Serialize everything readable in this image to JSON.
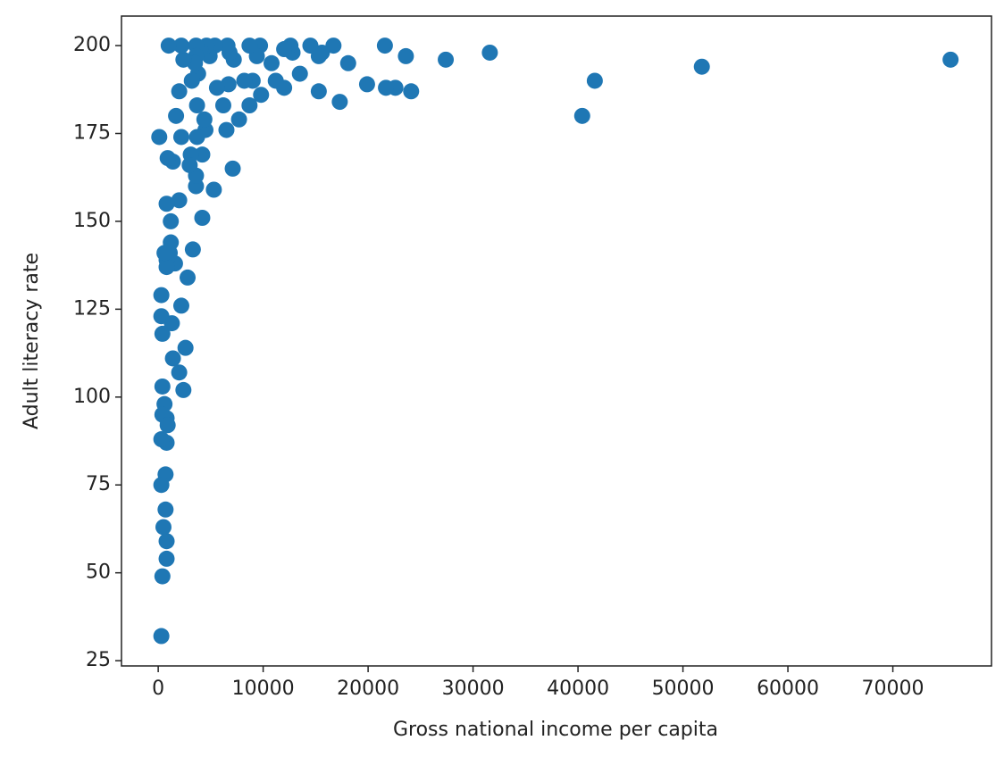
{
  "chart_data": {
    "type": "scatter",
    "x_label": "Gross national income per capita",
    "y_label": "Adult literacy rate",
    "color": "#1f77b4",
    "xlim": [
      -3500,
      79400
    ],
    "ylim": [
      23.5,
      208.4
    ],
    "xticks": [
      0,
      10000,
      20000,
      30000,
      40000,
      50000,
      60000,
      70000
    ],
    "yticks": [
      25,
      50,
      75,
      100,
      125,
      150,
      175,
      200
    ],
    "x": [
      75500,
      51800,
      41600,
      40400,
      31600,
      27400,
      24100,
      22600,
      21700,
      21600,
      23600,
      19900,
      18100,
      17300,
      16700,
      15600,
      15300,
      15300,
      14500,
      13500,
      12800,
      12600,
      12000,
      12000,
      11200,
      10800,
      9700,
      9400,
      9800,
      8700,
      9000,
      8700,
      8200,
      7700,
      7200,
      6800,
      6600,
      7100,
      6700,
      6500,
      6200,
      5600,
      5400,
      5300,
      4900,
      4600,
      4500,
      4400,
      4200,
      4200,
      4000,
      3800,
      3700,
      3700,
      3600,
      3600,
      3600,
      3500,
      3600,
      3200,
      3100,
      3000,
      3300,
      2800,
      2600,
      2400,
      2200,
      2200,
      2200,
      2400,
      2000,
      2000,
      2000,
      1700,
      1600,
      1400,
      1400,
      1300,
      1200,
      1200,
      1100,
      1000,
      900,
      800,
      800,
      800,
      800,
      800,
      800,
      800,
      700,
      700,
      600,
      600,
      500,
      400,
      400,
      400,
      400,
      300,
      300,
      300,
      300,
      300,
      100,
      900
    ],
    "y": [
      196,
      194,
      190,
      180,
      198,
      196,
      187,
      188,
      188,
      200,
      197,
      189,
      195,
      184,
      200,
      198,
      187,
      197,
      200,
      192,
      198,
      200,
      188,
      199,
      190,
      195,
      200,
      197,
      186,
      200,
      190,
      183,
      190,
      179,
      196,
      198,
      200,
      165,
      189,
      176,
      183,
      188,
      200,
      159,
      197,
      200,
      176,
      179,
      151,
      169,
      199,
      192,
      174,
      183,
      200,
      197,
      160,
      195,
      163,
      190,
      169,
      166,
      142,
      134,
      114,
      196,
      200,
      174,
      126,
      102,
      107,
      156,
      187,
      180,
      138,
      111,
      167,
      121,
      144,
      150,
      141,
      200,
      168,
      139,
      155,
      137,
      94,
      87,
      59,
      54,
      78,
      68,
      98,
      141,
      63,
      103,
      49,
      118,
      95,
      129,
      123,
      88,
      75,
      32,
      174,
      92
    ]
  }
}
